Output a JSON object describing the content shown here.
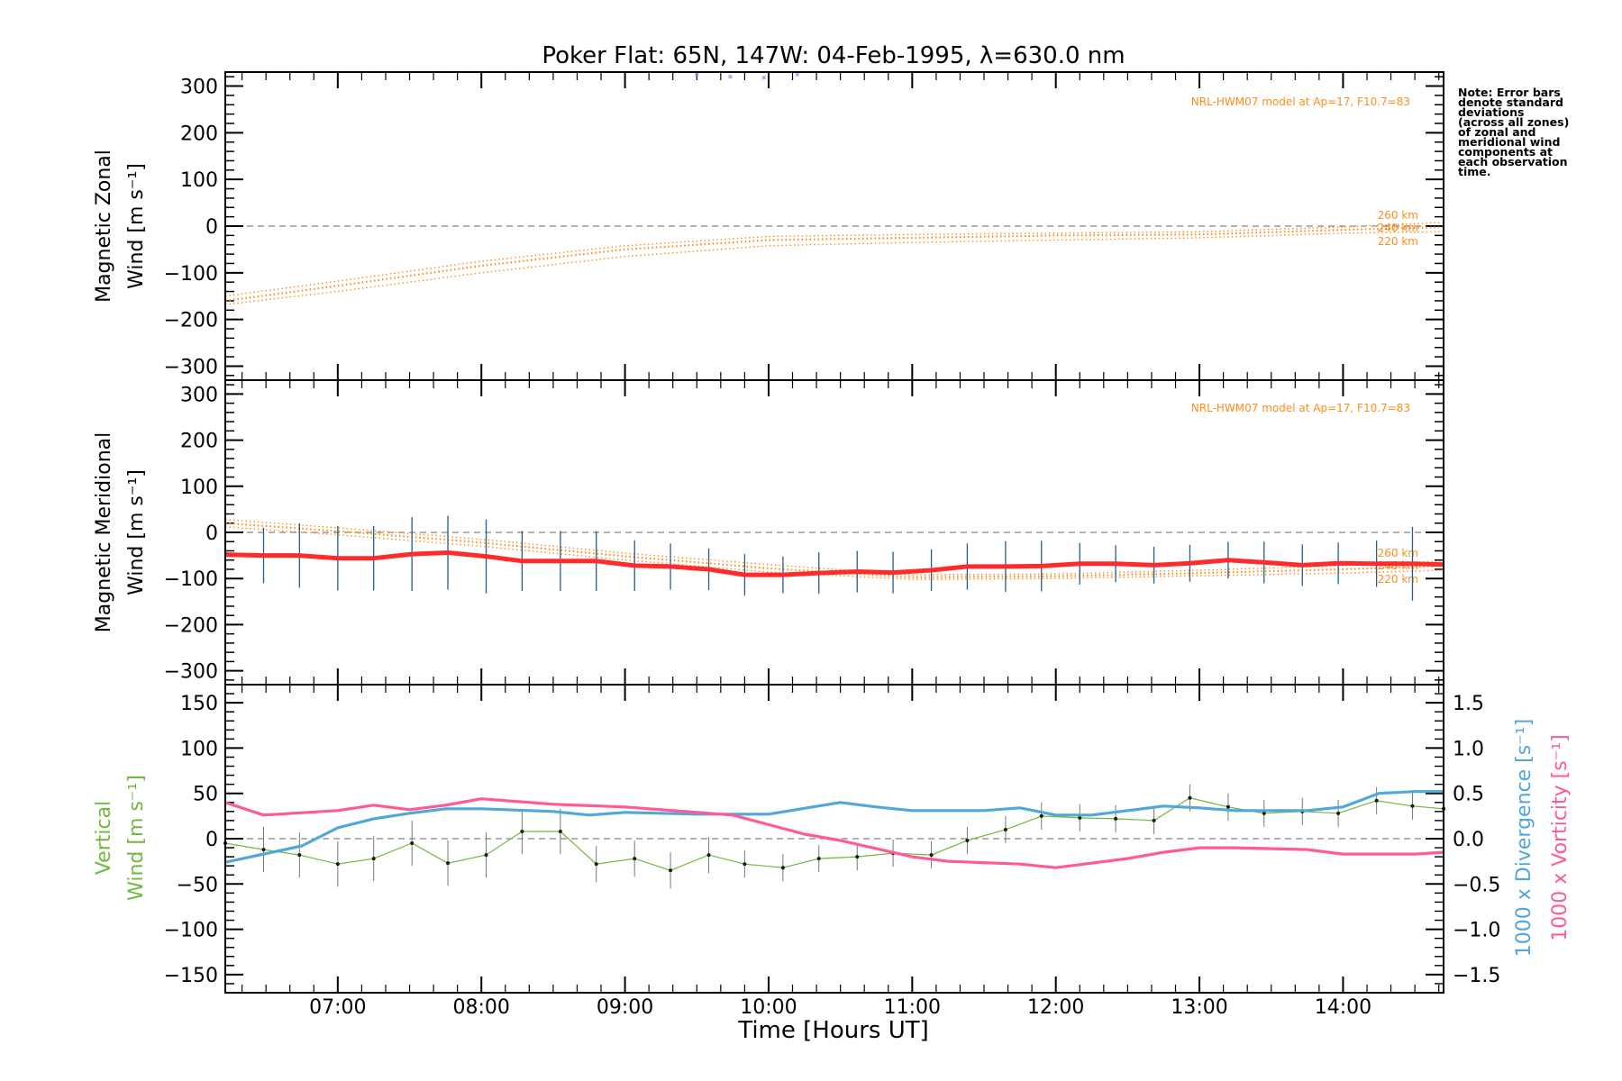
{
  "chart_data": {
    "type": "line",
    "title": "Poker Flat: 65N, 147W: 04-Feb-1995, λ=630.0 nm",
    "xlabel": "Time [Hours UT]",
    "x_tick_labels": [
      "07:00",
      "08:00",
      "09:00",
      "10:00",
      "11:00",
      "12:00",
      "13:00",
      "14:00"
    ],
    "xlim": [
      "06:13",
      "14:42"
    ],
    "note": [
      "Note: Error bars",
      "denote standard",
      "deviations",
      "(across all zones)",
      "of zonal and",
      "meridional wind",
      "components at",
      "each observation",
      "time."
    ],
    "colors": {
      "model": "#ff8c1a",
      "meridional": "#ff2b2b",
      "error_bars": "#1f5f8b",
      "vertical": "#6fb83c",
      "divergence": "#4fa8d8",
      "vorticity": "#ff5a96"
    },
    "panels": [
      {
        "id": "zonal",
        "ylabel_lines": [
          "Magnetic Zonal",
          "Wind [m s⁻¹]"
        ],
        "ylim": [
          -330,
          330
        ],
        "yticks": [
          "300",
          "200",
          "100",
          "0",
          "−100",
          "−200",
          "−300"
        ],
        "model_label": "NRL-HWM07 model at Ap=17, F10.7=83",
        "model_series": [
          {
            "name": "260 km",
            "x": [
              "06:13",
              "07:00",
              "08:00",
              "09:00",
              "10:00",
              "11:00",
              "12:00",
              "13:00",
              "14:00",
              "14:42"
            ],
            "values": [
              -150,
              -118,
              -75,
              -42,
              -22,
              -18,
              -15,
              -12,
              -2,
              8
            ]
          },
          {
            "name": "240 km",
            "x": [
              "06:13",
              "07:00",
              "08:00",
              "09:00",
              "10:00",
              "11:00",
              "12:00",
              "13:00",
              "14:00",
              "14:42"
            ],
            "values": [
              -160,
              -128,
              -85,
              -50,
              -30,
              -25,
              -20,
              -18,
              -8,
              -2
            ]
          },
          {
            "name": "220 km",
            "x": [
              "06:13",
              "07:00",
              "08:00",
              "09:00",
              "10:00",
              "11:00",
              "12:00",
              "13:00",
              "14:00",
              "14:42"
            ],
            "values": [
              -168,
              -140,
              -100,
              -65,
              -42,
              -35,
              -30,
              -25,
              -15,
              -12
            ]
          }
        ],
        "observed_zonal_points": {
          "x": [
            "09:30",
            "09:44",
            "09:58",
            "10:12"
          ],
          "values": [
            325,
            320,
            318,
            325
          ]
        }
      },
      {
        "id": "meridional",
        "ylabel_lines": [
          "Magnetic Meridional",
          "Wind [m s⁻¹]"
        ],
        "ylim": [
          -330,
          330
        ],
        "yticks": [
          "300",
          "200",
          "100",
          "0",
          "−100",
          "−200",
          "−300"
        ],
        "model_label": "NRL-HWM07 model at Ap=17, F10.7=83",
        "model_series": [
          {
            "name": "260 km",
            "x": [
              "06:13",
              "07:00",
              "08:00",
              "09:00",
              "10:00",
              "11:00",
              "12:00",
              "13:00",
              "14:00",
              "14:42"
            ],
            "values": [
              28,
              10,
              -15,
              -45,
              -70,
              -92,
              -90,
              -82,
              -72,
              -62
            ]
          },
          {
            "name": "240 km",
            "x": [
              "06:13",
              "07:00",
              "08:00",
              "09:00",
              "10:00",
              "11:00",
              "12:00",
              "13:00",
              "14:00",
              "14:42"
            ],
            "values": [
              20,
              3,
              -22,
              -52,
              -78,
              -97,
              -95,
              -88,
              -80,
              -72
            ]
          },
          {
            "name": "220 km",
            "x": [
              "06:13",
              "07:00",
              "08:00",
              "09:00",
              "10:00",
              "11:00",
              "12:00",
              "13:00",
              "14:00",
              "14:42"
            ],
            "values": [
              12,
              -5,
              -30,
              -60,
              -86,
              -102,
              -100,
              -94,
              -88,
              -82
            ]
          }
        ],
        "observed": {
          "x": [
            "06:13",
            "06:29",
            "06:44",
            "07:00",
            "07:15",
            "07:31",
            "07:46",
            "08:02",
            "08:17",
            "08:33",
            "08:48",
            "09:04",
            "09:19",
            "09:35",
            "09:50",
            "10:06",
            "10:21",
            "10:37",
            "10:52",
            "11:08",
            "11:23",
            "11:39",
            "11:54",
            "12:10",
            "12:25",
            "12:41",
            "12:56",
            "13:12",
            "13:27",
            "13:43",
            "13:58",
            "14:14",
            "14:29",
            "14:42"
          ],
          "values": [
            -48,
            -50,
            -50,
            -56,
            -56,
            -47,
            -44,
            -52,
            -62,
            -62,
            -62,
            -72,
            -74,
            -80,
            -92,
            -92,
            -88,
            -85,
            -87,
            -82,
            -74,
            -74,
            -73,
            -68,
            -68,
            -71,
            -67,
            -60,
            -65,
            -71,
            -67,
            -68,
            -68,
            -70
          ],
          "errors": [
            60,
            60,
            70,
            70,
            70,
            80,
            80,
            80,
            65,
            65,
            65,
            55,
            50,
            45,
            45,
            40,
            45,
            45,
            45,
            45,
            50,
            55,
            55,
            45,
            40,
            40,
            40,
            40,
            45,
            45,
            45,
            50,
            80,
            80
          ]
        }
      },
      {
        "id": "vertical",
        "ylabel_lines": [
          "Vertical",
          "Wind [m s⁻¹]"
        ],
        "ylim": [
          -170,
          170
        ],
        "yticks": [
          "150",
          "100",
          "50",
          "0",
          "−50",
          "−100",
          "−150"
        ],
        "y2lim": [
          -1.7,
          1.7
        ],
        "y2ticks": [
          "1.5",
          "1.0",
          "0.5",
          "0.0",
          "−0.5",
          "−1.0",
          "−1.5"
        ],
        "y2labels": [
          "1000 x Divergence [s⁻¹]",
          "1000 x Vorticity [s⁻¹]"
        ],
        "vertical_wind": {
          "x": [
            "06:13",
            "06:29",
            "06:44",
            "07:00",
            "07:15",
            "07:31",
            "07:46",
            "08:02",
            "08:17",
            "08:33",
            "08:48",
            "09:04",
            "09:19",
            "09:35",
            "09:50",
            "10:06",
            "10:21",
            "10:37",
            "10:52",
            "11:08",
            "11:23",
            "11:39",
            "11:54",
            "12:10",
            "12:25",
            "12:41",
            "12:56",
            "13:12",
            "13:27",
            "13:43",
            "13:58",
            "14:14",
            "14:29",
            "14:42"
          ],
          "values": [
            -5,
            -12,
            -18,
            -28,
            -22,
            -5,
            -27,
            -18,
            8,
            8,
            -28,
            -22,
            -35,
            -18,
            -28,
            -32,
            -22,
            -20,
            -16,
            -18,
            -2,
            10,
            25,
            23,
            22,
            20,
            45,
            35,
            28,
            30,
            28,
            42,
            36,
            33
          ],
          "errors": [
            25,
            25,
            25,
            25,
            25,
            25,
            25,
            25,
            25,
            25,
            20,
            20,
            20,
            20,
            15,
            15,
            15,
            15,
            15,
            15,
            15,
            15,
            15,
            15,
            15,
            15,
            15,
            15,
            15,
            15,
            15,
            15,
            15,
            15
          ]
        },
        "divergence": {
          "x": [
            "06:13",
            "06:45",
            "07:00",
            "07:15",
            "07:30",
            "07:45",
            "08:00",
            "08:30",
            "08:45",
            "09:00",
            "09:30",
            "10:00",
            "10:30",
            "10:45",
            "11:00",
            "11:30",
            "11:45",
            "12:00",
            "12:15",
            "12:30",
            "12:45",
            "13:00",
            "13:15",
            "13:30",
            "13:45",
            "14:00",
            "14:15",
            "14:30",
            "14:42"
          ],
          "values": [
            -0.26,
            -0.08,
            0.12,
            0.22,
            0.28,
            0.33,
            0.33,
            0.3,
            0.26,
            0.29,
            0.27,
            0.27,
            0.4,
            0.35,
            0.31,
            0.31,
            0.34,
            0.26,
            0.26,
            0.31,
            0.36,
            0.34,
            0.31,
            0.31,
            0.31,
            0.35,
            0.5,
            0.52,
            0.52
          ]
        },
        "vorticity": {
          "x": [
            "06:13",
            "06:29",
            "07:00",
            "07:15",
            "07:30",
            "07:45",
            "08:00",
            "08:30",
            "09:00",
            "09:45",
            "10:15",
            "10:30",
            "11:00",
            "11:15",
            "11:45",
            "12:00",
            "12:30",
            "12:45",
            "13:00",
            "13:15",
            "13:45",
            "14:00",
            "14:30",
            "14:42"
          ],
          "values": [
            0.4,
            0.26,
            0.31,
            0.37,
            0.32,
            0.37,
            0.44,
            0.38,
            0.35,
            0.26,
            0.05,
            -0.02,
            -0.2,
            -0.25,
            -0.28,
            -0.32,
            -0.22,
            -0.15,
            -0.1,
            -0.1,
            -0.12,
            -0.17,
            -0.17,
            -0.15
          ]
        }
      }
    ]
  }
}
